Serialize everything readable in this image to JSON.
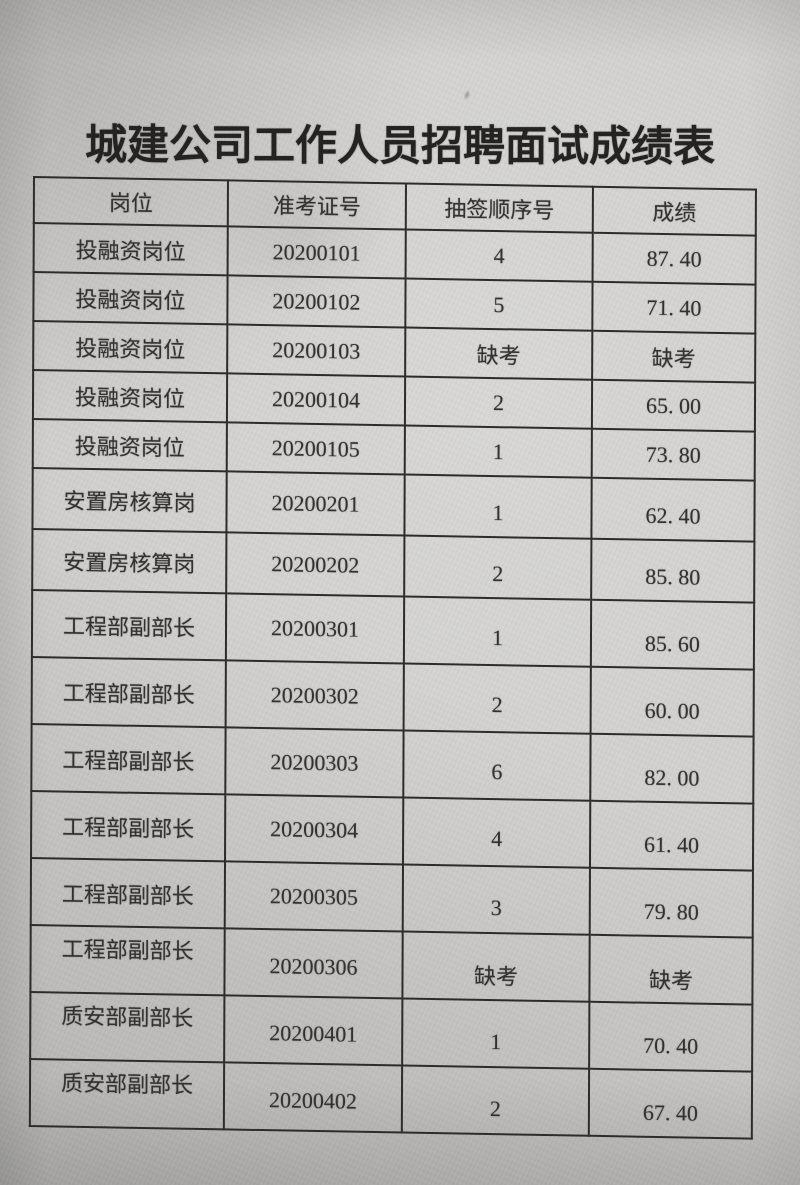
{
  "document": {
    "title": "城建公司工作人员招聘面试成绩表"
  },
  "table": {
    "columns": [
      "岗位",
      "准考证号",
      "抽签顺序号",
      "成绩"
    ],
    "rows": [
      [
        "投融资岗位",
        "20200101",
        "4",
        "87. 40"
      ],
      [
        "投融资岗位",
        "20200102",
        "5",
        "71. 40"
      ],
      [
        "投融资岗位",
        "20200103",
        "缺考",
        "缺考"
      ],
      [
        "投融资岗位",
        "20200104",
        "2",
        "65. 00"
      ],
      [
        "投融资岗位",
        "20200105",
        "1",
        "73. 80"
      ],
      [
        "安置房核算岗",
        "20200201",
        "1",
        "62. 40"
      ],
      [
        "安置房核算岗",
        "20200202",
        "2",
        "85. 80"
      ],
      [
        "工程部副部长",
        "20200301",
        "1",
        "85. 60"
      ],
      [
        "工程部副部长",
        "20200302",
        "2",
        "60. 00"
      ],
      [
        "工程部副部长",
        "20200303",
        "6",
        "82. 00"
      ],
      [
        "工程部副部长",
        "20200304",
        "4",
        "61. 40"
      ],
      [
        "工程部副部长",
        "20200305",
        "3",
        "79. 80"
      ],
      [
        "工程部副部长",
        "20200306",
        "缺考",
        "缺考"
      ],
      [
        "质安部副部长",
        "20200401",
        "1",
        "70. 40"
      ],
      [
        "质安部副部长",
        "20200402",
        "2",
        "67. 40"
      ]
    ]
  }
}
